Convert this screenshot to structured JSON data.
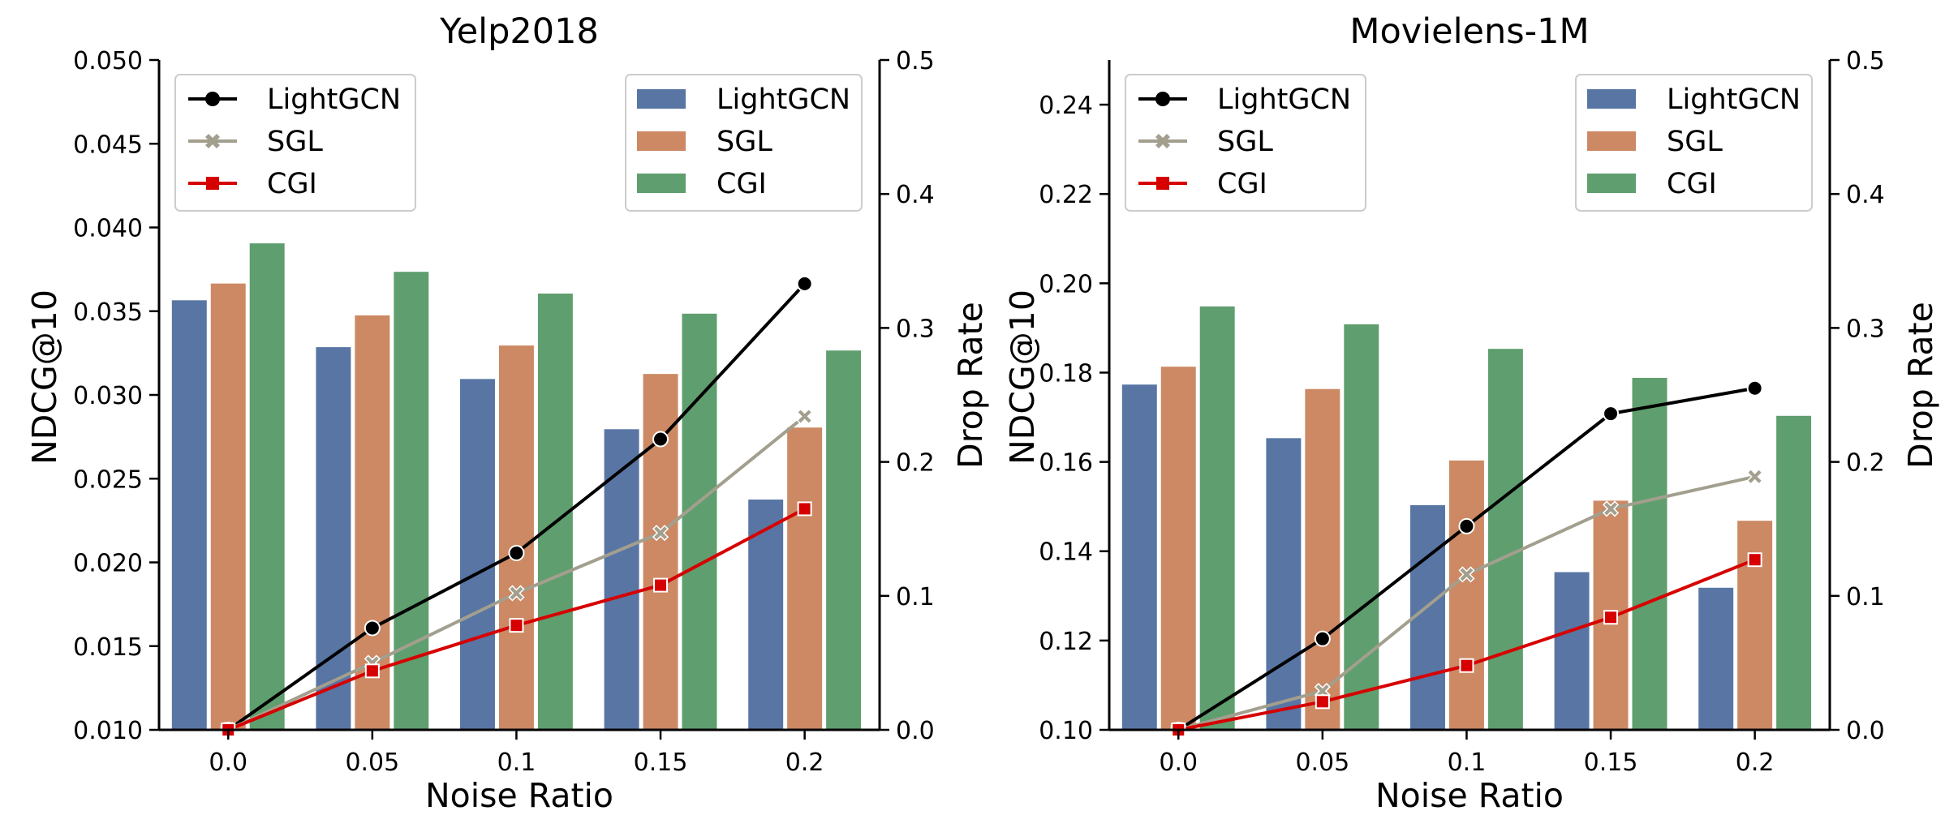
{
  "colors": {
    "lightgcn_bar": "#5875a4",
    "sgl_bar": "#cc8963",
    "cgi_bar": "#5f9e6e",
    "lightgcn_line": "#000000",
    "sgl_line": "#a39f8e",
    "cgi_line": "#d60000"
  },
  "chart_data": [
    {
      "type": "bar+line",
      "title": "Yelp2018",
      "xlabel": "Noise Ratio",
      "ylabel": "NDCG@10",
      "y2label": "Drop Rate",
      "categories": [
        "0.0",
        "0.05",
        "0.1",
        "0.15",
        "0.2"
      ],
      "ylim": [
        0.01,
        0.05
      ],
      "yticks": [
        "0.010",
        "0.015",
        "0.020",
        "0.025",
        "0.030",
        "0.035",
        "0.040",
        "0.045",
        "0.050"
      ],
      "y2lim": [
        0.0,
        0.5
      ],
      "y2ticks": [
        "0.0",
        "0.1",
        "0.2",
        "0.3",
        "0.4",
        "0.5"
      ],
      "bar_series": [
        {
          "name": "LightGCN",
          "color_key": "lightgcn_bar",
          "values": [
            0.0357,
            0.0329,
            0.031,
            0.028,
            0.0238
          ]
        },
        {
          "name": "SGL",
          "color_key": "sgl_bar",
          "values": [
            0.0367,
            0.0348,
            0.033,
            0.0313,
            0.0281
          ]
        },
        {
          "name": "CGI",
          "color_key": "cgi_bar",
          "values": [
            0.0391,
            0.0374,
            0.0361,
            0.0349,
            0.0327
          ]
        }
      ],
      "line_series": [
        {
          "name": "LightGCN",
          "color_key": "lightgcn_line",
          "marker": "circle",
          "values": [
            0.0,
            0.076,
            0.132,
            0.217,
            0.333
          ]
        },
        {
          "name": "SGL",
          "color_key": "sgl_line",
          "marker": "x",
          "values": [
            0.0,
            0.05,
            0.102,
            0.147,
            0.234
          ]
        },
        {
          "name": "CGI",
          "color_key": "cgi_line",
          "marker": "square",
          "values": [
            0.0,
            0.044,
            0.078,
            0.108,
            0.165
          ]
        }
      ],
      "legend": "line legend top-left, bar legend top-right"
    },
    {
      "type": "bar+line",
      "title": "Movielens-1M",
      "xlabel": "Noise Ratio",
      "ylabel": "NDCG@10",
      "y2label": "Drop Rate",
      "categories": [
        "0.0",
        "0.05",
        "0.1",
        "0.15",
        "0.2"
      ],
      "ylim": [
        0.1,
        0.25
      ],
      "yticks": [
        "0.10",
        "0.12",
        "0.14",
        "0.16",
        "0.18",
        "0.20",
        "0.22",
        "0.24"
      ],
      "y2lim": [
        0.0,
        0.5
      ],
      "y2ticks": [
        "0.0",
        "0.1",
        "0.2",
        "0.3",
        "0.4",
        "0.5"
      ],
      "bar_series": [
        {
          "name": "LightGCN",
          "color_key": "lightgcn_bar",
          "values": [
            0.1775,
            0.1655,
            0.1505,
            0.1355,
            0.132
          ]
        },
        {
          "name": "SGL",
          "color_key": "sgl_bar",
          "values": [
            0.1815,
            0.1765,
            0.1605,
            0.1515,
            0.147
          ]
        },
        {
          "name": "CGI",
          "color_key": "cgi_bar",
          "values": [
            0.195,
            0.191,
            0.1855,
            0.179,
            0.1705
          ]
        }
      ],
      "line_series": [
        {
          "name": "LightGCN",
          "color_key": "lightgcn_line",
          "marker": "circle",
          "values": [
            0.0,
            0.068,
            0.152,
            0.236,
            0.255
          ]
        },
        {
          "name": "SGL",
          "color_key": "sgl_line",
          "marker": "x",
          "values": [
            0.0,
            0.029,
            0.116,
            0.165,
            0.189
          ]
        },
        {
          "name": "CGI",
          "color_key": "cgi_line",
          "marker": "square",
          "values": [
            0.0,
            0.021,
            0.048,
            0.084,
            0.127
          ]
        }
      ],
      "legend": "line legend top-left, bar legend top-right"
    }
  ]
}
